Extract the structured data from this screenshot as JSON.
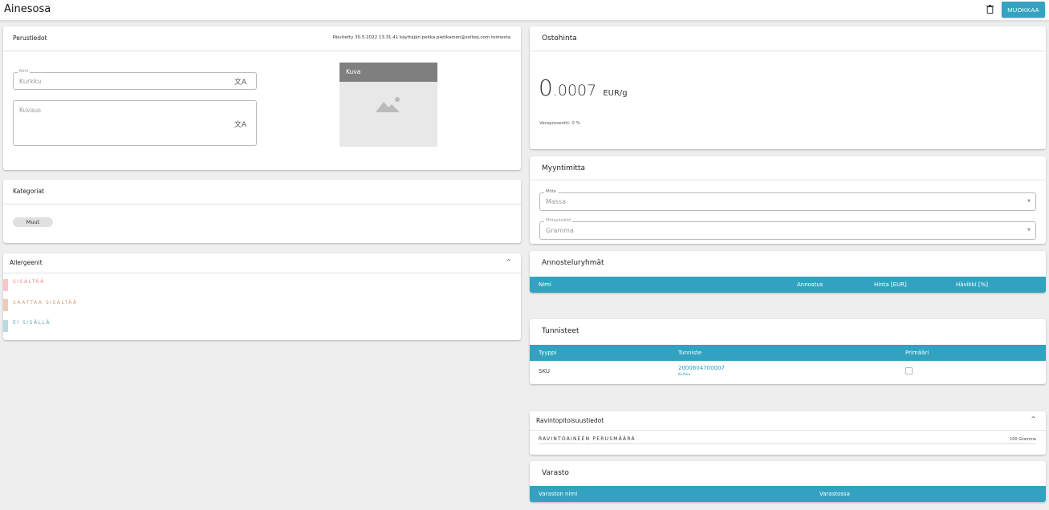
{
  "header": {
    "title": "Ainesosa",
    "edit_label": "MUOKKAA"
  },
  "perustiedot": {
    "title": "Perustiedot",
    "updated": "Päivitetty 30.5.2022 13.31.41 käyttäjän pekka.pietikainen@solteq.com toimesta",
    "name_label": "Nimi",
    "name_value": "Kurkku",
    "desc_placeholder": "Kuvaus",
    "image_label": "Kuva"
  },
  "kategoriat": {
    "title": "Kategoriat",
    "chips": [
      "Muut"
    ]
  },
  "allergeenit": {
    "title": "Allergeenit",
    "items": [
      {
        "label": "SISÄLTÄÄ",
        "color": "#f08a8a",
        "bar": "#f9c7c7"
      },
      {
        "label": "SAATTAA SISÄLTÄÄ",
        "color": "#d59a6a",
        "bar": "#ebcdb5"
      },
      {
        "label": "EI SISÄLLÄ",
        "color": "#5aa5b3",
        "bar": "#b9dbe1"
      }
    ]
  },
  "ostohinta": {
    "title": "Ostohinta",
    "integer": "0",
    "decimal": ".0007",
    "unit": "EUR/g",
    "vat": "Veroprosentti: 0 %"
  },
  "myyntimitta": {
    "title": "Myyntimitta",
    "measure_label": "Mitta",
    "measure_value": "Massa",
    "unit_label": "Mittayksikkö",
    "unit_value": "Gramma"
  },
  "annosteluryhmat": {
    "title": "Annosteluryhmät",
    "columns": [
      "Nimi",
      "Annostus",
      "Hinta [EUR]",
      "Hävikki [%]"
    ]
  },
  "tunnisteet": {
    "title": "Tunnisteet",
    "columns": [
      "Tyyppi",
      "Tunniste",
      "Primääri"
    ],
    "rows": [
      {
        "type": "SKU",
        "id": "2000604700007",
        "sub": "Kurkku",
        "primary": false
      }
    ]
  },
  "ravinto": {
    "title": "Ravintopitoisuustiedot",
    "base_label": "RAVINTOAINEEN PERUSMÄÄRÄ",
    "base_value": "100 Gramma"
  },
  "varasto": {
    "title": "Varasto",
    "columns": [
      "Varaston nimi",
      "Varastossa"
    ]
  },
  "colors": {
    "accent": "#33a2c0",
    "background": "#eeeeee"
  }
}
